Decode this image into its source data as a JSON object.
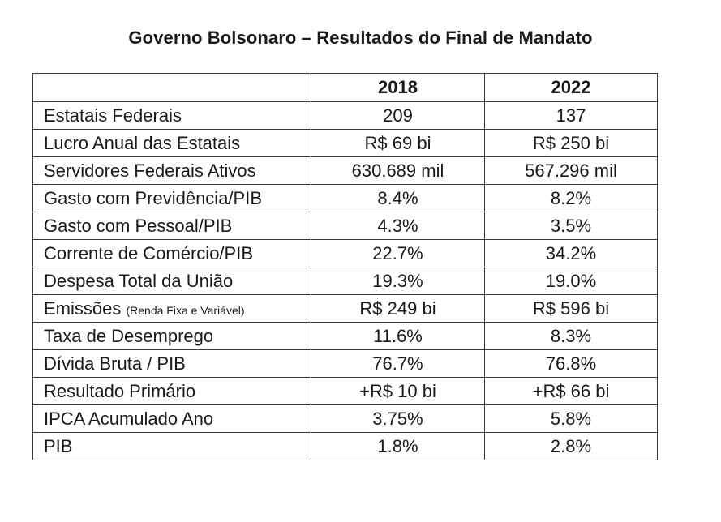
{
  "title": "Governo Bolsonaro – Resultados do Final de Mandato",
  "table": {
    "headers": [
      "",
      "2018",
      "2022"
    ],
    "rows": [
      {
        "label": "Estatais Federais",
        "label_note": "",
        "v2018": "209",
        "v2022": "137"
      },
      {
        "label": "Lucro Anual das Estatais",
        "label_note": "",
        "v2018": "R$ 69 bi",
        "v2022": "R$ 250 bi"
      },
      {
        "label": "Servidores Federais Ativos",
        "label_note": "",
        "v2018": "630.689 mil",
        "v2022": "567.296 mil"
      },
      {
        "label": "Gasto com Previdência/PIB",
        "label_note": "",
        "v2018": "8.4%",
        "v2022": "8.2%"
      },
      {
        "label": "Gasto com Pessoal/PIB",
        "label_note": "",
        "v2018": "4.3%",
        "v2022": "3.5%"
      },
      {
        "label": "Corrente de Comércio/PIB",
        "label_note": "",
        "v2018": "22.7%",
        "v2022": "34.2%"
      },
      {
        "label": "Despesa Total da União",
        "label_note": "",
        "v2018": "19.3%",
        "v2022": "19.0%"
      },
      {
        "label": "Emissões",
        "label_note": "(Renda Fixa e Variável)",
        "v2018": "R$ 249 bi",
        "v2022": "R$ 596 bi"
      },
      {
        "label": "Taxa de Desemprego",
        "label_note": "",
        "v2018": "11.6%",
        "v2022": "8.3%"
      },
      {
        "label": "Dívida Bruta / PIB",
        "label_note": "",
        "v2018": "76.7%",
        "v2022": "76.8%"
      },
      {
        "label": "Resultado Primário",
        "label_note": "",
        "v2018": "+R$ 10 bi",
        "v2022": "+R$ 66 bi"
      },
      {
        "label": "IPCA Acumulado Ano",
        "label_note": "",
        "v2018": "3.75%",
        "v2022": "5.8%"
      },
      {
        "label": "PIB",
        "label_note": "",
        "v2018": "1.8%",
        "v2022": "2.8%"
      }
    ]
  }
}
